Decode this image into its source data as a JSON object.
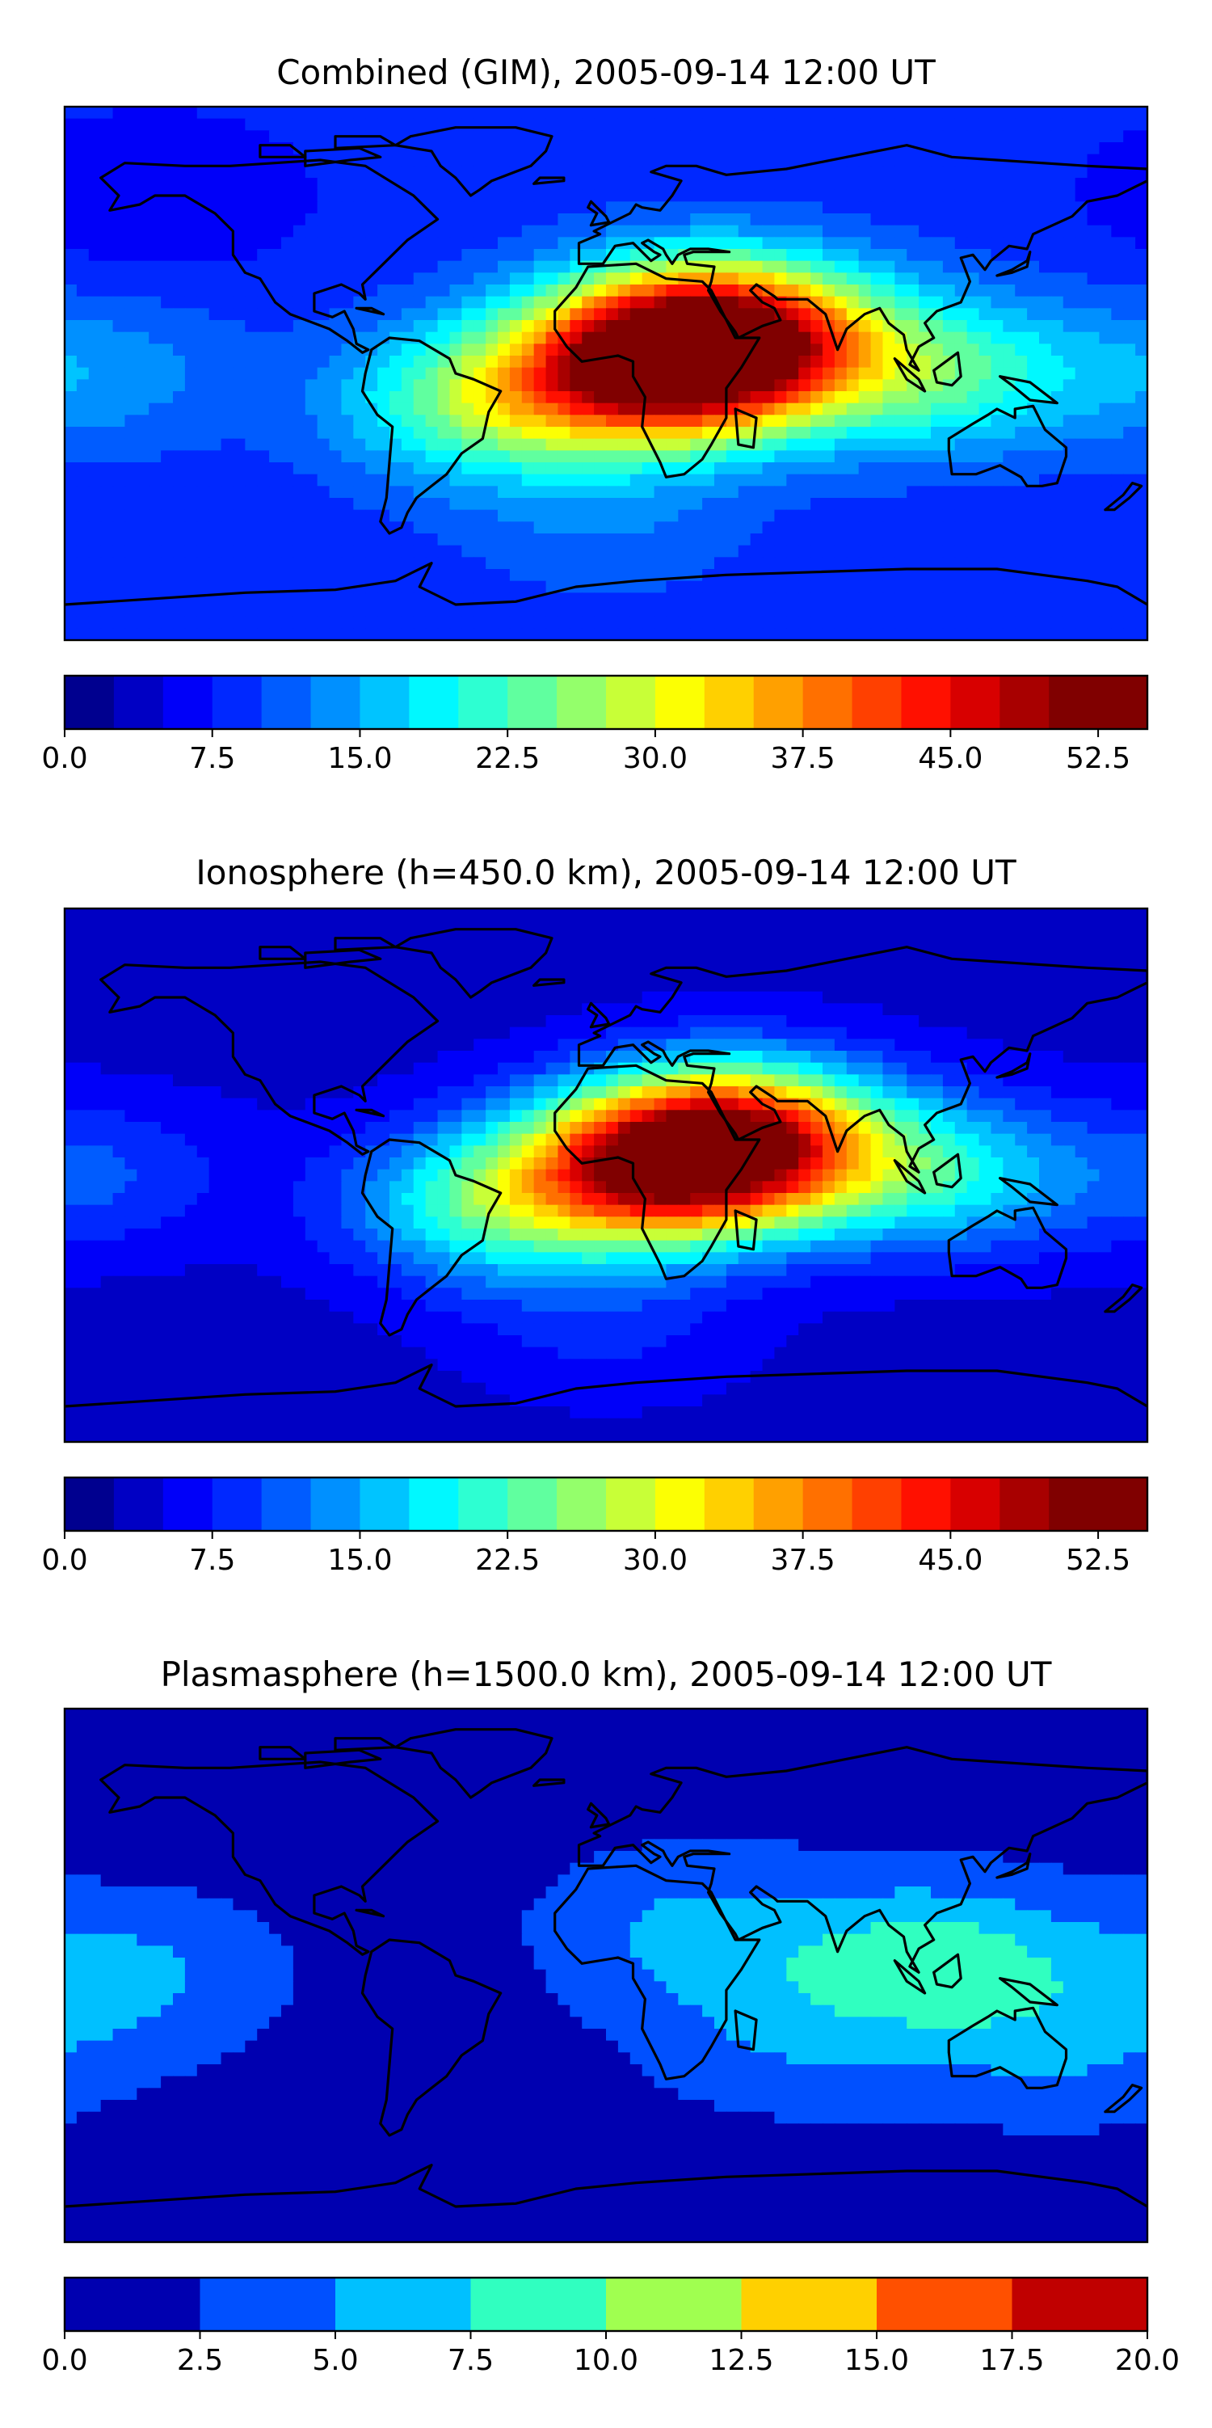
{
  "chart_data": [
    {
      "type": "heatmap",
      "title": "Combined (GIM), 2005-09-14 12:00 UT",
      "colorbar": {
        "ticks": [
          "0.0",
          "7.5",
          "15.0",
          "22.5",
          "30.0",
          "37.5",
          "45.0",
          "52.5"
        ],
        "range": [
          0,
          55
        ],
        "levels": 22,
        "colors": [
          "#00008f",
          "#0000c4",
          "#0000f9",
          "#0028ff",
          "#005cff",
          "#0090ff",
          "#00c4ff",
          "#00f8ff",
          "#2dffd2",
          "#60ff9f",
          "#94ff6b",
          "#c8ff37",
          "#fcff03",
          "#ffd000",
          "#ffa000",
          "#ff7000",
          "#ff4000",
          "#ff1000",
          "#d80000",
          "#a80000",
          "#800000",
          "#800000"
        ]
      },
      "field": {
        "background": 8.5,
        "blobs": [
          {
            "lon": 40,
            "lat": 12,
            "value": 46
          },
          {
            "lon": 15,
            "lat": 2,
            "value": 40
          },
          {
            "lon": -40,
            "lat": -10,
            "value": 24
          },
          {
            "lon": 110,
            "lat": 0,
            "value": 22
          },
          {
            "lon": -170,
            "lat": 0,
            "value": 14
          },
          {
            "lon": 0,
            "lat": -50,
            "value": 12
          },
          {
            "lon": -150,
            "lat": 60,
            "value": 5
          }
        ]
      }
    },
    {
      "type": "heatmap",
      "title": "Ionosphere  (h=450.0 km), 2005-09-14 12:00 UT",
      "colorbar": {
        "ticks": [
          "0.0",
          "7.5",
          "15.0",
          "22.5",
          "30.0",
          "37.5",
          "45.0",
          "52.5"
        ],
        "range": [
          0,
          55
        ],
        "levels": 22,
        "colors": [
          "#00008f",
          "#0000c4",
          "#0000f9",
          "#0028ff",
          "#005cff",
          "#0090ff",
          "#00c4ff",
          "#00f8ff",
          "#2dffd2",
          "#60ff9f",
          "#94ff6b",
          "#c8ff37",
          "#fcff03",
          "#ffd000",
          "#ffa000",
          "#ff7000",
          "#ff4000",
          "#ff1000",
          "#d80000",
          "#a80000",
          "#800000",
          "#800000"
        ]
      },
      "field": {
        "background": 4,
        "blobs": [
          {
            "lon": 45,
            "lat": 12,
            "value": 40
          },
          {
            "lon": 15,
            "lat": 2,
            "value": 36
          },
          {
            "lon": -40,
            "lat": -10,
            "value": 20
          },
          {
            "lon": 110,
            "lat": 0,
            "value": 18
          },
          {
            "lon": -170,
            "lat": 0,
            "value": 10
          },
          {
            "lon": 0,
            "lat": -50,
            "value": 8
          }
        ]
      }
    },
    {
      "type": "heatmap",
      "title": "Plasmasphere (h=1500.0 km), 2005-09-14 12:00 UT",
      "colorbar": {
        "ticks": [
          "0.0",
          "2.5",
          "5.0",
          "7.5",
          "10.0",
          "12.5",
          "15.0",
          "17.5",
          "20.0"
        ],
        "range": [
          0,
          20
        ],
        "levels": 8,
        "colors": [
          "#0000b0",
          "#0050ff",
          "#00c0ff",
          "#30ffc0",
          "#a0ff50",
          "#ffd000",
          "#ff5000",
          "#c00000"
        ]
      },
      "field": {
        "background": 1.5,
        "blobs": [
          {
            "lon": 110,
            "lat": 5,
            "value": 8.5
          },
          {
            "lon": 30,
            "lat": 15,
            "value": 5.5
          },
          {
            "lon": -160,
            "lat": 0,
            "value": 5.5
          },
          {
            "lon": 60,
            "lat": -20,
            "value": 4.5
          },
          {
            "lon": 150,
            "lat": -25,
            "value": 4.5
          }
        ]
      }
    }
  ],
  "map": {
    "coastline_color": "#000000",
    "extent_lon": [
      -180,
      180
    ],
    "extent_lat": [
      -90,
      90
    ]
  }
}
